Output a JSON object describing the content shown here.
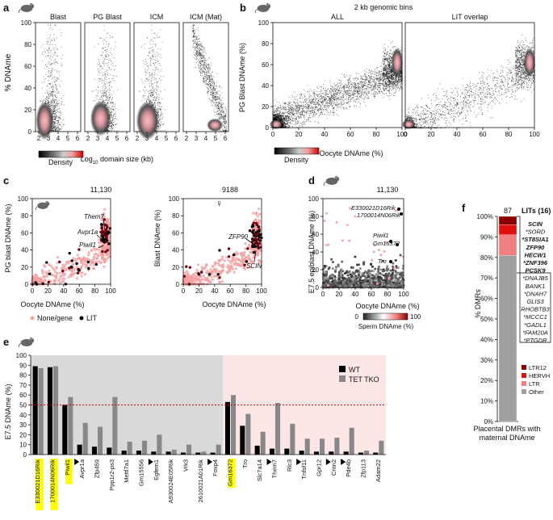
{
  "panel_labels": {
    "a": "a",
    "b": "b",
    "c": "c",
    "d": "d",
    "e": "e",
    "f": "f"
  },
  "colors": {
    "lit_dark": "#8b0000",
    "lit_mid": "#e01010",
    "lit_light": "#f08080",
    "other_gray": "#a0a0a0",
    "none_pink": "#f4a0a0",
    "lit_black": "#000000",
    "tko_gray": "#888888",
    "wt_black": "#000000",
    "bg_gray": "#d9d9d9",
    "bg_pink": "#fde6e6",
    "highlight_yellow": "#ffff00",
    "cutoff_red": "#cc0000"
  },
  "panel_a": {
    "ylabel": "% DNAme",
    "xlabel": "Log",
    "xlabel_sub": "10",
    "xlabel_rest": " domain size (kb)",
    "titles": [
      "Blast",
      "PG Blast",
      "ICM",
      "ICM (Mat)"
    ],
    "xticks": [
      "2",
      "3",
      "4",
      "5",
      "6"
    ],
    "yticks": [
      "0",
      "20",
      "40",
      "60",
      "80",
      "100"
    ],
    "legend_label": "Density"
  },
  "panel_b": {
    "header": "2 kb genomic bins",
    "titles": [
      "ALL",
      "LIT overlap"
    ],
    "ylabel": "PG Blast DNAme (%)",
    "xlabel": "Oocyte DNAme (%)",
    "xticks": [
      "0",
      "20",
      "40",
      "60",
      "80",
      "100"
    ],
    "yticks": [
      "0",
      "20",
      "40",
      "60",
      "80",
      "100"
    ],
    "legend_label": "Density"
  },
  "panel_c": {
    "left_title": "11,130",
    "right_title": "9188",
    "left_ylabel": "PG blast DNAme (%)",
    "right_ylabel": "Blast DNAme (%)",
    "xlabel": "Oocyte DNAme (%)",
    "ticks": [
      "0",
      "20",
      "40",
      "60",
      "80",
      "100"
    ],
    "left_annotations": [
      "Them7",
      "Avpr1a",
      "Piwil1"
    ],
    "right_annotations": [
      "ZFP90",
      "SCIN"
    ],
    "legend": [
      "None/gene",
      "LIT"
    ]
  },
  "panel_d": {
    "title": "11,130",
    "ylabel": "E7.5 epiblast DNAme (%)",
    "xlabel": "Oocyte DNAme (%)",
    "ticks": [
      "0",
      "20",
      "40",
      "60",
      "80",
      "100"
    ],
    "annotations": [
      "E330021D16Rik",
      "1700014N06Rik",
      "Piwil1",
      "Gm16372",
      "Tro"
    ],
    "colorbar_min": "0",
    "colorbar_max": "100",
    "colorbar_label": "Sperm DNAme (%)"
  },
  "panel_f": {
    "count": "87",
    "lits_header": "LITs (16)",
    "lit_genes": [
      "SCIN",
      "*SORD",
      "*ST8SIA1",
      "ZFP90",
      "HECW1",
      "*ZNF396",
      "PCSK9",
      "*DNAJB5",
      "BANK1",
      "*DNAH7",
      "GLIS3",
      "RHOBTB3",
      "*MCCC1",
      "*GADL1",
      "*FAM20A",
      "*PTGDR"
    ],
    "ylabel": "% DMRs",
    "yticks": [
      "0%",
      "10%",
      "20%",
      "30%",
      "40%",
      "50%",
      "60%",
      "70%",
      "80%",
      "90%",
      "100%"
    ],
    "legend": [
      "LTR12",
      "HERVH",
      "LTR",
      "Other"
    ],
    "xlabel_line1": "Placental DMRs with",
    "xlabel_line2": "maternal DNAme"
  },
  "chart_data": [
    {
      "type": "bar",
      "panel": "e",
      "ylabel": "E7.5 DNAme (%)",
      "ylim": [
        0,
        100
      ],
      "yticks": [
        "0",
        "10",
        "20",
        "30",
        "40",
        "50",
        "60",
        "70",
        "80",
        "90",
        "100"
      ],
      "legend": [
        "WT",
        "TET TKO"
      ],
      "cutoff": 50,
      "categories": [
        "E330021D16Rik",
        "1700014N06Rik",
        "Piwil1",
        "Avpr1a",
        "Zfp459",
        "Ppp1r2-ps3",
        "Mettl7a1",
        "Gm15556",
        "Egfem1",
        "A930024E05Rik",
        "Vrk3",
        "2610021A01Rik",
        "Foxp4",
        "Gm16372",
        "Tro",
        "Slc7a14",
        "Them7",
        "Rlc3",
        "Tnfsf11",
        "Gpr12",
        "Cntn2",
        "Pde4b",
        "Zfp113",
        "Adam22"
      ],
      "highlighted": [
        "E330021D16Rik",
        "1700014N06Rik",
        "Piwil1",
        "Gm16372"
      ],
      "arrowed": [
        "Avpr1a",
        "Egfem1",
        "Foxp4",
        "Them7",
        "Tnfsf11",
        "Cntn2",
        "Pde4b"
      ],
      "series": [
        {
          "name": "WT",
          "values": [
            89,
            88,
            50,
            10,
            8,
            7,
            4,
            4,
            3,
            3,
            2,
            2,
            2,
            53,
            29,
            9,
            6,
            6,
            4,
            3,
            3,
            3,
            2,
            2
          ]
        },
        {
          "name": "TET TKO",
          "values": [
            87,
            89,
            58,
            32,
            28,
            58,
            13,
            14,
            20,
            5,
            10,
            3,
            10,
            60,
            41,
            23,
            52,
            31,
            16,
            16,
            17,
            27,
            4,
            14
          ]
        }
      ]
    },
    {
      "type": "bar",
      "panel": "f",
      "stacked": true,
      "categories": [
        "Placental DMRs with maternal DNAme"
      ],
      "series": [
        {
          "name": "Other",
          "values": [
            81
          ]
        },
        {
          "name": "LTR",
          "values": [
            10
          ]
        },
        {
          "name": "HERVH",
          "values": [
            5
          ]
        },
        {
          "name": "LTR12",
          "values": [
            4
          ]
        }
      ],
      "ylim": [
        0,
        100
      ]
    }
  ]
}
